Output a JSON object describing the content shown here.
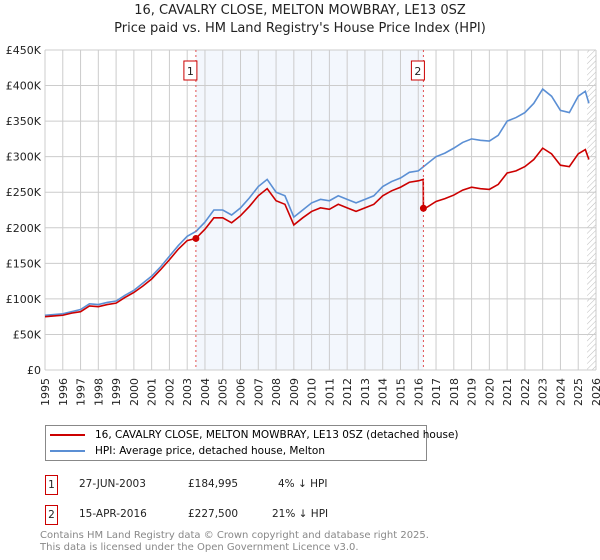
{
  "chart_data": {
    "type": "line",
    "title": "16, CAVALRY CLOSE, MELTON MOWBRAY, LE13 0SZ",
    "subtitle": "Price paid vs. HM Land Registry's House Price Index (HPI)",
    "xlim": [
      1995,
      2026
    ],
    "ylim": [
      0,
      450000
    ],
    "x_ticks": [
      "1995",
      "1996",
      "1997",
      "1998",
      "1999",
      "2000",
      "2001",
      "2002",
      "2003",
      "2004",
      "2005",
      "2006",
      "2007",
      "2008",
      "2009",
      "2010",
      "2011",
      "2012",
      "2013",
      "2014",
      "2015",
      "2016",
      "2017",
      "2018",
      "2019",
      "2020",
      "2021",
      "2022",
      "2023",
      "2024",
      "2025",
      "2026"
    ],
    "y_ticks": [
      {
        "v": 0,
        "label": "£0"
      },
      {
        "v": 50000,
        "label": "£50K"
      },
      {
        "v": 100000,
        "label": "£100K"
      },
      {
        "v": 150000,
        "label": "£150K"
      },
      {
        "v": 200000,
        "label": "£200K"
      },
      {
        "v": 250000,
        "label": "£250K"
      },
      {
        "v": 300000,
        "label": "£300K"
      },
      {
        "v": 350000,
        "label": "£350K"
      },
      {
        "v": 400000,
        "label": "£400K"
      },
      {
        "v": 450000,
        "label": "£450K"
      }
    ],
    "series": [
      {
        "name": "16, CAVALRY CLOSE, MELTON MOWBRAY, LE13 0SZ (detached house)",
        "color": "#cc0000",
        "x": [
          1995,
          1995.5,
          1996,
          1996.5,
          1997,
          1997.5,
          1998,
          1998.5,
          1999,
          1999.5,
          2000,
          2000.5,
          2001,
          2001.5,
          2002,
          2002.5,
          2003,
          2003.49,
          2004,
          2004.5,
          2005,
          2005.5,
          2006,
          2006.5,
          2007,
          2007.5,
          2008,
          2008.5,
          2009,
          2009.5,
          2010,
          2010.5,
          2011,
          2011.5,
          2012,
          2012.5,
          2013,
          2013.5,
          2014,
          2014.5,
          2015,
          2015.5,
          2016,
          2016.28,
          2016.29,
          2016.5,
          2017,
          2017.5,
          2018,
          2018.5,
          2019,
          2019.5,
          2020,
          2020.5,
          2021,
          2021.5,
          2022,
          2022.5,
          2023,
          2023.5,
          2024,
          2024.5,
          2025,
          2025.4,
          2025.6
        ],
        "values": [
          75,
          76,
          77,
          80,
          82,
          90,
          89,
          92,
          94,
          102,
          109,
          118,
          128,
          141,
          155,
          170,
          182,
          185,
          198,
          214,
          214,
          207,
          217,
          230,
          245,
          255,
          238,
          233,
          204,
          214,
          223,
          228,
          226,
          233,
          228,
          223,
          228,
          233,
          245,
          252,
          257,
          264,
          266,
          268,
          227.5,
          229,
          237,
          241,
          246,
          253,
          257,
          255,
          254,
          261,
          277,
          280,
          286,
          296,
          312,
          304,
          288,
          286,
          304,
          310,
          296
        ]
      },
      {
        "name": "HPI: Average price, detached house, Melton",
        "color": "#5b8fd4",
        "x": [
          1995,
          1995.5,
          1996,
          1996.5,
          1997,
          1997.5,
          1998,
          1998.5,
          1999,
          1999.5,
          2000,
          2000.5,
          2001,
          2001.5,
          2002,
          2002.5,
          2003,
          2003.5,
          2004,
          2004.5,
          2005,
          2005.5,
          2006,
          2006.5,
          2007,
          2007.5,
          2008,
          2008.5,
          2009,
          2009.5,
          2010,
          2010.5,
          2011,
          2011.5,
          2012,
          2012.5,
          2013,
          2013.5,
          2014,
          2014.5,
          2015,
          2015.5,
          2016,
          2016.5,
          2017,
          2017.5,
          2018,
          2018.5,
          2019,
          2019.5,
          2020,
          2020.5,
          2021,
          2021.5,
          2022,
          2022.5,
          2023,
          2023.5,
          2024,
          2024.5,
          2025,
          2025.4,
          2025.6
        ],
        "values": [
          77,
          78,
          79,
          82,
          85,
          93,
          92,
          95,
          97,
          105,
          112,
          122,
          132,
          145,
          160,
          175,
          188,
          195,
          208,
          225,
          225,
          218,
          228,
          242,
          258,
          268,
          250,
          245,
          215,
          225,
          235,
          240,
          238,
          245,
          240,
          235,
          240,
          245,
          258,
          265,
          270,
          278,
          280,
          290,
          300,
          305,
          312,
          320,
          325,
          323,
          322,
          330,
          350,
          355,
          362,
          375,
          395,
          385,
          365,
          362,
          385,
          392,
          375
        ]
      }
    ],
    "value_unit": "thousand GBP",
    "sales": [
      {
        "num": "1",
        "x": 2003.49,
        "value": 184995,
        "date": "27-JUN-2003",
        "price": "£184,995",
        "hpi": "4% ↓ HPI"
      },
      {
        "num": "2",
        "x": 2016.29,
        "value": 227500,
        "date": "15-APR-2016",
        "price": "£227,500",
        "hpi": "21% ↓ HPI"
      }
    ],
    "forecast_start": 2025.5,
    "legend_placement": "below"
  },
  "footer": {
    "line1": "Contains HM Land Registry data © Crown copyright and database right 2025.",
    "line2": "This data is licensed under the Open Government Licence v3.0."
  }
}
